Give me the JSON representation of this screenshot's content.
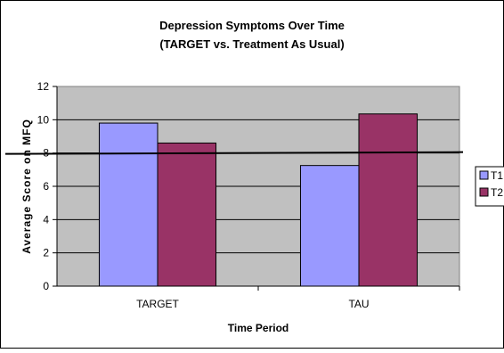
{
  "chart_data": {
    "type": "bar",
    "title": "Depression Symptoms Over Time",
    "subtitle": "(TARGET vs. Treatment As Usual)",
    "xlabel": "Time Period",
    "ylabel": "Average Score on MFQ",
    "categories": [
      "TARGET",
      "TAU"
    ],
    "series": [
      {
        "name": "T1",
        "values": [
          9.8,
          7.25
        ],
        "color": "#9999ff"
      },
      {
        "name": "T2",
        "values": [
          8.6,
          10.35
        ],
        "color": "#993366"
      }
    ],
    "ylim": [
      0,
      12
    ],
    "yticks": [
      0,
      2,
      4,
      6,
      8,
      10,
      12
    ],
    "grid": true,
    "plot_background": "#c0c0c0",
    "reference_line": 8,
    "legend_position": "right"
  }
}
